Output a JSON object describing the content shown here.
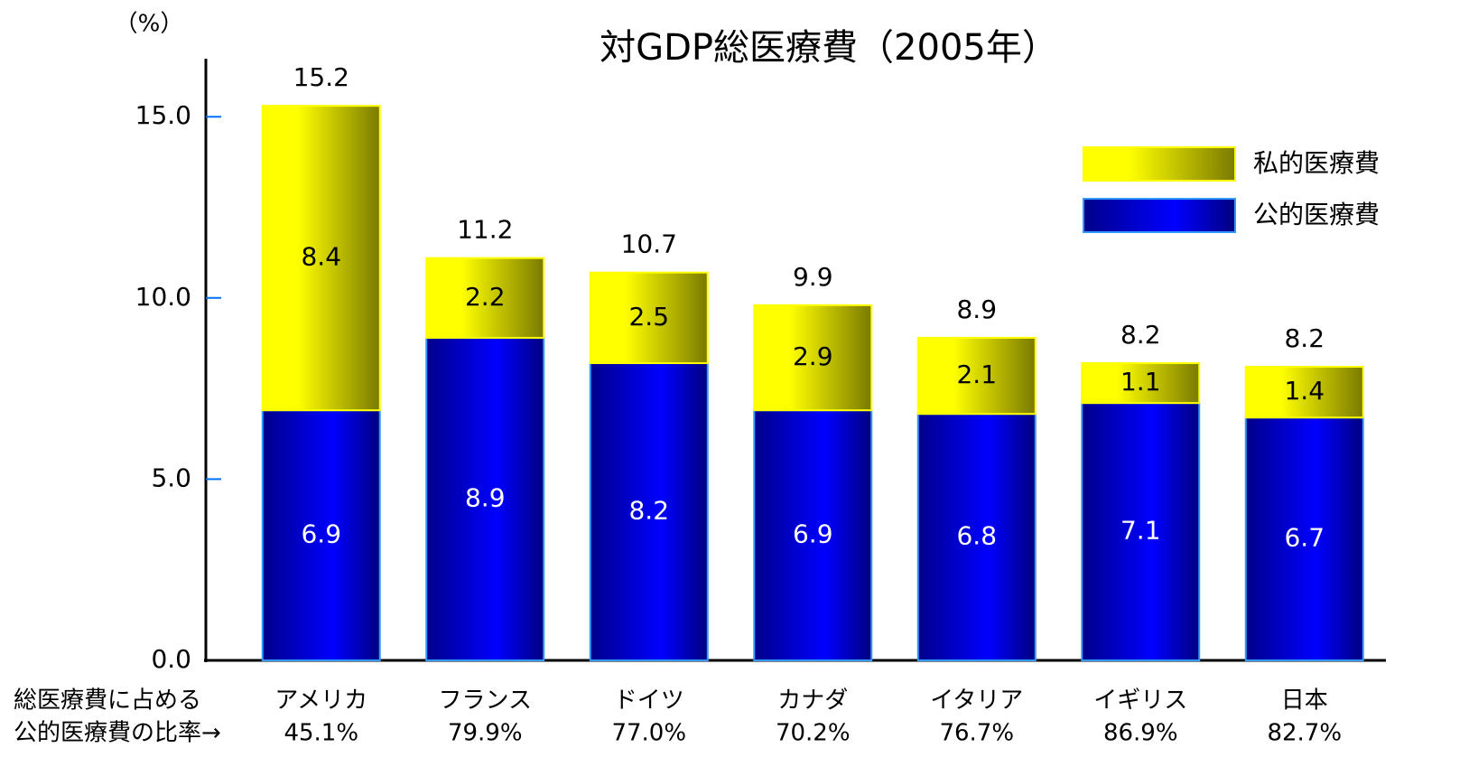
{
  "chart_data": {
    "type": "stacked_bar",
    "title": "対GDP総医療費（2005年）",
    "y_unit": "（%）",
    "categories": [
      "アメリカ",
      "フランス",
      "ドイツ",
      "カナダ",
      "イタリア",
      "イギリス",
      "日本"
    ],
    "series": [
      {
        "name": "公的医療費",
        "color": "#0000ff",
        "values": [
          6.9,
          8.9,
          8.2,
          6.9,
          6.8,
          7.1,
          6.7
        ]
      },
      {
        "name": "私的医療費",
        "color": "#ffff00",
        "values": [
          8.4,
          2.2,
          2.5,
          2.9,
          2.1,
          1.1,
          1.4
        ]
      }
    ],
    "totals": [
      15.2,
      11.2,
      10.7,
      9.9,
      8.9,
      8.2,
      8.2
    ],
    "ratio_label": [
      "総医療費に占める",
      "公的医療費の比率→"
    ],
    "public_ratio": {
      "values": [
        45.1,
        79.9,
        77.0,
        70.2,
        76.7,
        86.9,
        82.7
      ],
      "value_labels": [
        "45.1%",
        "79.9%",
        "77.0%",
        "70.2%",
        "76.7%",
        "86.9%",
        "82.7%"
      ]
    },
    "ylim": [
      0,
      16.6
    ],
    "yticks": [
      {
        "value": 0,
        "label": "0.0"
      },
      {
        "value": 5,
        "label": "5.0"
      },
      {
        "value": 10,
        "label": "10.0"
      },
      {
        "value": 15,
        "label": "15.0"
      }
    ]
  }
}
